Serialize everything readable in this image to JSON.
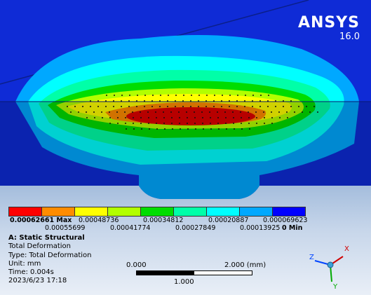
{
  "brand": {
    "name": "ANSYS",
    "version": "16.0"
  },
  "legend": {
    "colors": [
      "#ff0000",
      "#ff8c00",
      "#ffff00",
      "#b2ff00",
      "#00dd00",
      "#00ffa8",
      "#00ffff",
      "#00a8ff",
      "#0000ff"
    ],
    "top_max": "0.00062661 Max",
    "top_values": [
      "0.00048736",
      "0.00034812",
      "0.00020887",
      "0.000069623"
    ],
    "bottom_values": [
      "0.00055699",
      "0.00041774",
      "0.00027849",
      "0.00013925"
    ],
    "bottom_min": "0 Min"
  },
  "info": {
    "title": "A: Static Structural",
    "result": "Total Deformation",
    "type": "Type: Total Deformation",
    "unit": "Unit: mm",
    "time": "Time: 0.004s",
    "date": "2023/6/23 17:18"
  },
  "scale": {
    "start": "0.000",
    "end": "2.000 (mm)",
    "mid": "1.000"
  },
  "triad": {
    "x": "X",
    "y": "Y",
    "z": "Z"
  }
}
